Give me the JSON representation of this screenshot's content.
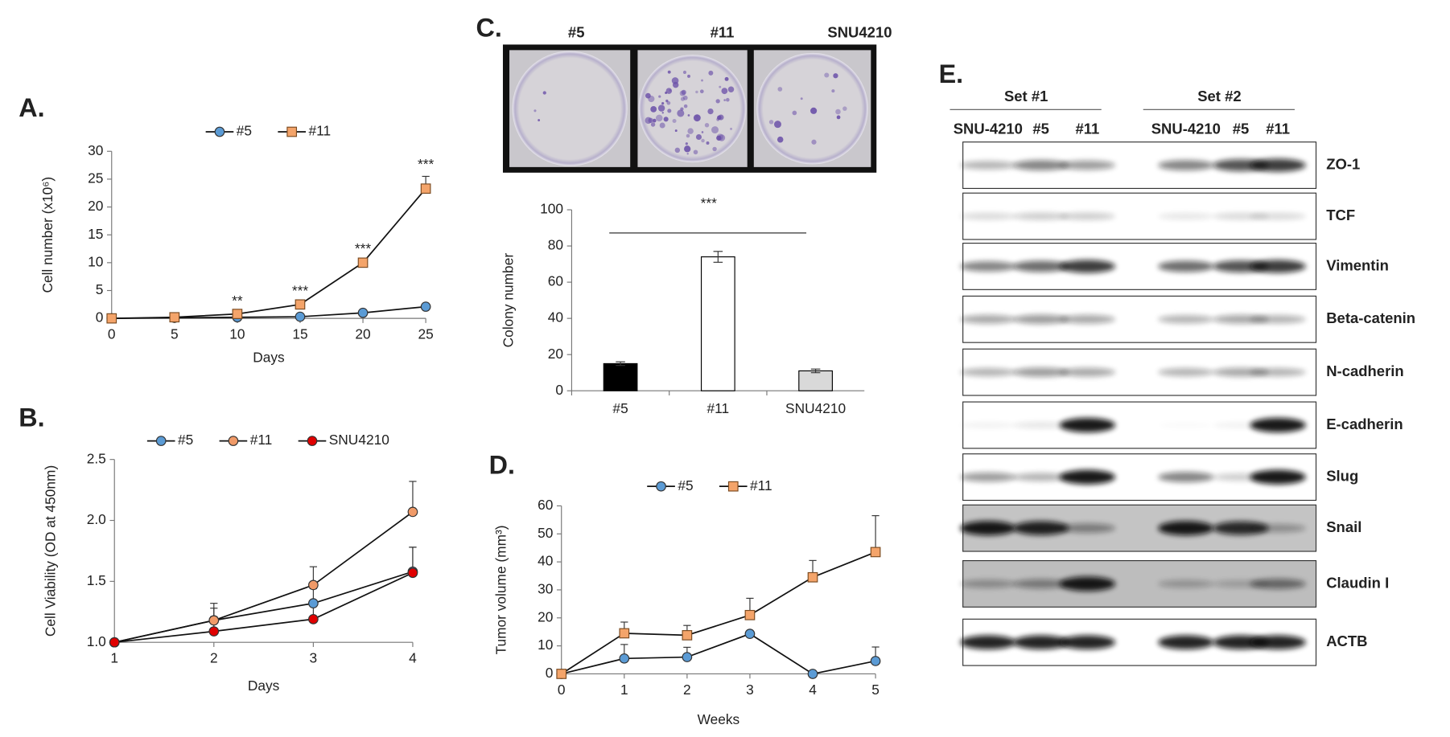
{
  "chart_data": [
    {
      "type": "line",
      "label": "A.",
      "xlabel": "Days",
      "ylabel": "Cell number (x10⁶)",
      "x": [
        0,
        5,
        10,
        15,
        20,
        25
      ],
      "series": [
        {
          "name": "#5",
          "color": "#5b9bd5",
          "marker": "circle",
          "values": [
            0,
            0.1,
            0.2,
            0.3,
            1.0,
            2.1
          ],
          "errors": [
            0,
            0,
            0,
            0,
            0.1,
            0.2
          ]
        },
        {
          "name": "#11",
          "color": "#f4a46a",
          "marker": "square",
          "values": [
            0,
            0.2,
            0.8,
            2.5,
            10,
            23.3
          ],
          "errors": [
            0,
            0.1,
            0.2,
            0.3,
            0.4,
            2.2
          ]
        }
      ],
      "annotations": [
        {
          "text": "**",
          "x": 10
        },
        {
          "text": "***",
          "x": 15
        },
        {
          "text": "***",
          "x": 20
        },
        {
          "text": "***",
          "x": 25
        }
      ],
      "xlim": [
        0,
        25
      ],
      "xticks": [
        0,
        5,
        10,
        15,
        20,
        25
      ],
      "ylim": [
        0,
        30
      ],
      "yticks": [
        0,
        5,
        10,
        15,
        20,
        25,
        30
      ]
    },
    {
      "type": "line",
      "label": "B.",
      "xlabel": "Days",
      "ylabel": "Cell Viability (OD at 450nm)",
      "x": [
        1,
        2,
        3,
        4
      ],
      "series": [
        {
          "name": "#5",
          "color": "#5b9bd5",
          "marker": "circle",
          "values": [
            1.0,
            1.18,
            1.32,
            1.58
          ],
          "errors": [
            0,
            0.1,
            0.12,
            0.2
          ]
        },
        {
          "name": "#11",
          "color": "#f09a68",
          "marker": "circle",
          "values": [
            1.0,
            1.18,
            1.47,
            2.07
          ],
          "errors": [
            0,
            0.14,
            0.15,
            0.25
          ]
        },
        {
          "name": "SNU4210",
          "color": "#e00000",
          "marker": "circle",
          "values": [
            1.0,
            1.09,
            1.19,
            1.57
          ],
          "errors": [
            0,
            0.12,
            0.15,
            0.21
          ]
        }
      ],
      "xlim": [
        1,
        4
      ],
      "xticks": [
        1,
        2,
        3,
        4
      ],
      "ylim": [
        1.0,
        2.5
      ],
      "yticks": [
        {
          "value": 1.0,
          "label": "1.0"
        },
        1.5,
        {
          "value": 2.0,
          "label": "2.0"
        },
        2.5
      ]
    },
    {
      "type": "bar",
      "label": "C.",
      "ylabel": "Colony number",
      "annotation": "***",
      "image_labels": [
        "#5",
        "#11",
        "SNU4210"
      ],
      "categories": [
        "#5",
        "#11",
        "SNU4210"
      ],
      "values": [
        15,
        74,
        11
      ],
      "errors": [
        1,
        3,
        1
      ],
      "colors": [
        "#000000",
        "#ffffff",
        "#d9d9d9"
      ],
      "ylim": [
        0,
        100
      ],
      "yticks": [
        0,
        20,
        40,
        60,
        80,
        100
      ]
    },
    {
      "type": "line",
      "label": "D.",
      "xlabel": "Weeks",
      "ylabel": "Tumor volume (mm³)",
      "x": [
        0,
        1,
        2,
        3,
        4,
        5
      ],
      "series": [
        {
          "name": "#5",
          "color": "#5b9bd5",
          "marker": "circle",
          "values": [
            0,
            5.5,
            6,
            14.3,
            0,
            4.6
          ],
          "errors": [
            0,
            5,
            3.5,
            0,
            0,
            5
          ]
        },
        {
          "name": "#11",
          "color": "#f4a46a",
          "marker": "square",
          "values": [
            0,
            14.5,
            13.8,
            21,
            34.5,
            43.5
          ],
          "errors": [
            0,
            4,
            3.5,
            6,
            6,
            13
          ]
        }
      ],
      "xlim": [
        0,
        5
      ],
      "xticks": [
        0,
        1,
        2,
        3,
        4,
        5
      ],
      "ylim": [
        0,
        60
      ],
      "yticks": [
        0,
        10,
        20,
        30,
        40,
        50,
        60
      ]
    }
  ],
  "blot": {
    "label": "E.",
    "sets": [
      {
        "name": "Set #1",
        "lanes": [
          "SNU-4210",
          "#5",
          "#11"
        ]
      },
      {
        "name": "Set #2",
        "lanes": [
          "SNU-4210",
          "#5",
          "#11"
        ]
      }
    ],
    "proteins": [
      "ZO-1",
      "TCF",
      "Vimentin",
      "Beta-catenin",
      "N-cadherin",
      "E-cadherin",
      "Slug",
      "Snail",
      "Claudin I",
      "ACTB"
    ]
  }
}
